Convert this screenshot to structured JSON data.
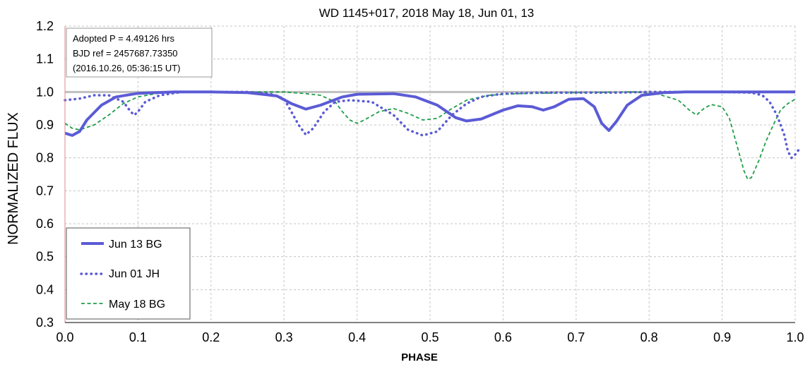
{
  "chart_data": {
    "type": "line",
    "title": "WD 1145+017, 2018 May 18, Jun 01, 13",
    "xlabel": "PHASE",
    "ylabel": "NORMALIZED FLUX",
    "xlim": [
      0.0,
      1.0
    ],
    "ylim": [
      0.3,
      1.2
    ],
    "grid": true,
    "x_ticks": [
      "0.0",
      "0.1",
      "0.2",
      "0.3",
      "0.4",
      "0.5",
      "0.6",
      "0.7",
      "0.8",
      "0.9",
      "1.0"
    ],
    "y_ticks": [
      "0.3",
      "0.4",
      "0.5",
      "0.6",
      "0.7",
      "0.8",
      "0.9",
      "1.0",
      "1.1",
      "1.2"
    ],
    "annotation": [
      "Adopted P = 4.49126 hrs",
      "BJD ref = 2457687.73350",
      "(2016.10.26, 05:36:15 UT)"
    ],
    "legend_position": "bottom-left",
    "reference_line": 1.0,
    "series": [
      {
        "name": "Jun 13 BG",
        "color": "#5b5bd6",
        "style": "solid",
        "points": [
          [
            0.0,
            0.875
          ],
          [
            0.01,
            0.868
          ],
          [
            0.02,
            0.88
          ],
          [
            0.03,
            0.915
          ],
          [
            0.05,
            0.96
          ],
          [
            0.07,
            0.985
          ],
          [
            0.1,
            0.996
          ],
          [
            0.15,
            1.0
          ],
          [
            0.2,
            1.0
          ],
          [
            0.25,
            0.998
          ],
          [
            0.29,
            0.988
          ],
          [
            0.31,
            0.965
          ],
          [
            0.33,
            0.948
          ],
          [
            0.35,
            0.96
          ],
          [
            0.38,
            0.985
          ],
          [
            0.4,
            0.993
          ],
          [
            0.45,
            0.995
          ],
          [
            0.48,
            0.985
          ],
          [
            0.51,
            0.96
          ],
          [
            0.535,
            0.922
          ],
          [
            0.55,
            0.912
          ],
          [
            0.57,
            0.918
          ],
          [
            0.6,
            0.945
          ],
          [
            0.62,
            0.958
          ],
          [
            0.64,
            0.955
          ],
          [
            0.655,
            0.945
          ],
          [
            0.67,
            0.955
          ],
          [
            0.69,
            0.978
          ],
          [
            0.71,
            0.98
          ],
          [
            0.725,
            0.955
          ],
          [
            0.735,
            0.905
          ],
          [
            0.745,
            0.883
          ],
          [
            0.755,
            0.91
          ],
          [
            0.77,
            0.96
          ],
          [
            0.79,
            0.99
          ],
          [
            0.82,
            0.998
          ],
          [
            0.85,
            1.0
          ],
          [
            0.9,
            1.0
          ],
          [
            1.0,
            1.0
          ]
        ]
      },
      {
        "name": "Jun 01 JH",
        "color": "#5b5bd6",
        "style": "dotted",
        "points": [
          [
            0.0,
            0.975
          ],
          [
            0.02,
            0.98
          ],
          [
            0.04,
            0.99
          ],
          [
            0.06,
            0.99
          ],
          [
            0.08,
            0.97
          ],
          [
            0.09,
            0.94
          ],
          [
            0.095,
            0.93
          ],
          [
            0.1,
            0.94
          ],
          [
            0.11,
            0.97
          ],
          [
            0.13,
            0.99
          ],
          [
            0.16,
            1.0
          ],
          [
            0.2,
            1.0
          ],
          [
            0.25,
            1.0
          ],
          [
            0.28,
            0.995
          ],
          [
            0.3,
            0.98
          ],
          [
            0.31,
            0.94
          ],
          [
            0.32,
            0.9
          ],
          [
            0.33,
            0.87
          ],
          [
            0.34,
            0.89
          ],
          [
            0.355,
            0.94
          ],
          [
            0.37,
            0.97
          ],
          [
            0.39,
            0.975
          ],
          [
            0.42,
            0.97
          ],
          [
            0.45,
            0.93
          ],
          [
            0.47,
            0.885
          ],
          [
            0.49,
            0.868
          ],
          [
            0.51,
            0.88
          ],
          [
            0.53,
            0.93
          ],
          [
            0.55,
            0.965
          ],
          [
            0.57,
            0.985
          ],
          [
            0.6,
            0.995
          ],
          [
            0.65,
            0.998
          ],
          [
            0.7,
            0.998
          ],
          [
            0.75,
            0.998
          ],
          [
            0.8,
            1.0
          ],
          [
            0.85,
            1.0
          ],
          [
            0.9,
            1.0
          ],
          [
            0.94,
            0.998
          ],
          [
            0.955,
            0.99
          ],
          [
            0.965,
            0.97
          ],
          [
            0.975,
            0.93
          ],
          [
            0.985,
            0.87
          ],
          [
            0.99,
            0.82
          ],
          [
            0.995,
            0.8
          ],
          [
            1.0,
            0.81
          ],
          [
            1.005,
            0.825
          ]
        ]
      },
      {
        "name": "May 18 BG",
        "color": "#1f9e48",
        "style": "dashed",
        "points": [
          [
            0.0,
            0.905
          ],
          [
            0.01,
            0.89
          ],
          [
            0.02,
            0.885
          ],
          [
            0.04,
            0.9
          ],
          [
            0.06,
            0.93
          ],
          [
            0.08,
            0.965
          ],
          [
            0.1,
            0.985
          ],
          [
            0.13,
            0.997
          ],
          [
            0.2,
            1.0
          ],
          [
            0.3,
            1.0
          ],
          [
            0.33,
            0.995
          ],
          [
            0.35,
            0.99
          ],
          [
            0.37,
            0.97
          ],
          [
            0.38,
            0.94
          ],
          [
            0.39,
            0.915
          ],
          [
            0.4,
            0.905
          ],
          [
            0.41,
            0.915
          ],
          [
            0.43,
            0.94
          ],
          [
            0.45,
            0.95
          ],
          [
            0.47,
            0.935
          ],
          [
            0.49,
            0.915
          ],
          [
            0.51,
            0.92
          ],
          [
            0.53,
            0.95
          ],
          [
            0.55,
            0.975
          ],
          [
            0.58,
            0.99
          ],
          [
            0.62,
            0.995
          ],
          [
            0.7,
            0.998
          ],
          [
            0.78,
            1.0
          ],
          [
            0.81,
            0.995
          ],
          [
            0.84,
            0.975
          ],
          [
            0.855,
            0.945
          ],
          [
            0.865,
            0.93
          ],
          [
            0.875,
            0.95
          ],
          [
            0.885,
            0.962
          ],
          [
            0.9,
            0.955
          ],
          [
            0.91,
            0.92
          ],
          [
            0.92,
            0.84
          ],
          [
            0.93,
            0.76
          ],
          [
            0.935,
            0.735
          ],
          [
            0.94,
            0.74
          ],
          [
            0.95,
            0.79
          ],
          [
            0.96,
            0.85
          ],
          [
            0.97,
            0.9
          ],
          [
            0.98,
            0.945
          ],
          [
            0.99,
            0.965
          ],
          [
            1.0,
            0.978
          ]
        ]
      }
    ]
  }
}
